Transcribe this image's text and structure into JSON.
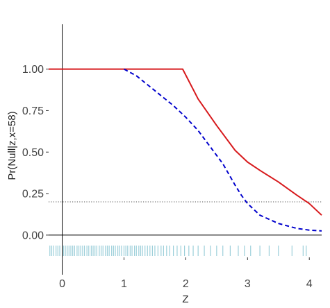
{
  "chart_data": {
    "type": "line",
    "title": "",
    "xlabel": "Z",
    "ylabel": "Pr(Null|z,x=58)",
    "xlim": [
      -0.22,
      4.2
    ],
    "ylim": [
      -0.13,
      1.27
    ],
    "x_ticks": [
      0,
      1,
      2,
      3,
      4
    ],
    "x_tick_labels": [
      "0",
      "1",
      "2",
      "3",
      "4"
    ],
    "y_ticks": [
      0.0,
      0.25,
      0.5,
      0.75,
      1.0
    ],
    "y_tick_labels": [
      "0.00",
      "0.25",
      "0.50",
      "0.75",
      "1.00"
    ],
    "grid": false,
    "legend": "none",
    "reference_line": {
      "y": 0.2,
      "style": "dotted",
      "color": "#555555"
    },
    "series": [
      {
        "style": "solid",
        "color": "#d7191c",
        "x": [
          -0.22,
          1.95,
          2.2,
          2.5,
          2.8,
          3.0,
          3.2,
          3.5,
          3.8,
          4.0,
          4.2
        ],
        "y": [
          1.0,
          1.0,
          0.82,
          0.66,
          0.51,
          0.44,
          0.39,
          0.32,
          0.24,
          0.19,
          0.12
        ]
      },
      {
        "style": "dashed",
        "color": "#0000cc",
        "x": [
          1.0,
          1.2,
          1.5,
          1.8,
          2.0,
          2.2,
          2.4,
          2.6,
          2.8,
          2.9,
          3.0,
          3.2,
          3.5,
          3.8,
          4.0,
          4.2
        ],
        "y": [
          1.0,
          0.96,
          0.87,
          0.78,
          0.71,
          0.63,
          0.53,
          0.43,
          0.3,
          0.24,
          0.19,
          0.12,
          0.07,
          0.04,
          0.03,
          0.025
        ]
      }
    ],
    "rug": {
      "color": "#9ccfda",
      "y": -0.05,
      "x": [
        -0.2,
        -0.17,
        -0.14,
        -0.1,
        -0.07,
        -0.04,
        0.02,
        0.05,
        0.08,
        0.11,
        0.14,
        0.17,
        0.2,
        0.24,
        0.27,
        0.3,
        0.33,
        0.36,
        0.4,
        0.43,
        0.47,
        0.5,
        0.53,
        0.56,
        0.6,
        0.63,
        0.66,
        0.7,
        0.73,
        0.76,
        0.8,
        0.83,
        0.86,
        0.9,
        0.93,
        0.96,
        1.0,
        1.03,
        1.06,
        1.1,
        1.13,
        1.17,
        1.2,
        1.24,
        1.27,
        1.3,
        1.34,
        1.38,
        1.42,
        1.46,
        1.5,
        1.55,
        1.6,
        1.64,
        1.69,
        1.74,
        1.8,
        1.86,
        1.92,
        1.98,
        2.05,
        2.12,
        2.2,
        2.3,
        2.4,
        2.5,
        2.6,
        2.72,
        2.85,
        2.95,
        3.05,
        3.2,
        3.35,
        3.5,
        3.72,
        3.9,
        3.95
      ]
    }
  }
}
